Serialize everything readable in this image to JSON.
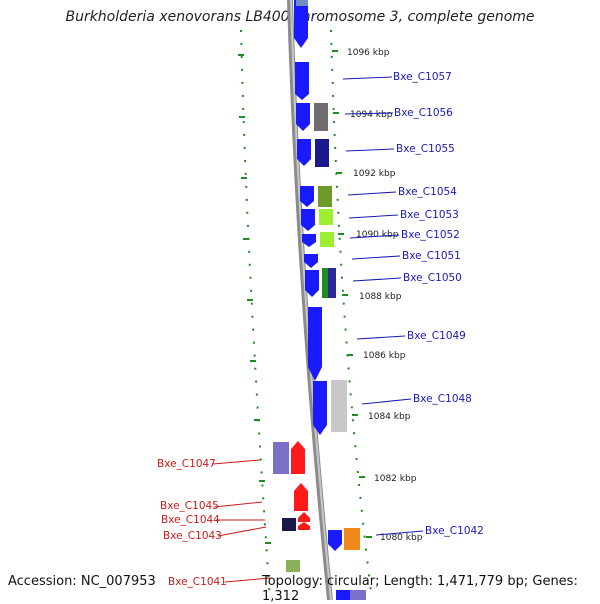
{
  "title": "Burkholderia xenovorans LB400 chromosome 3, complete genome",
  "footer": {
    "accession_label": "Accession:",
    "accession": "NC_007953",
    "topology_label": "Topology:",
    "topology": "circular",
    "length_label": "Length:",
    "length": "1,471,779 bp",
    "genes_label": "Genes:",
    "genes": "1,312"
  },
  "colors": {
    "forward_strand": "#1a1aff",
    "reverse_strand": "#ff1a1a",
    "backbone": "#909090",
    "ruler_ticks": "#1e8c1e",
    "forward_label": "#1a1ab4",
    "reverse_label": "#cc1a1a"
  },
  "scale_labels": [
    "1096 kbp",
    "1094 kbp",
    "1092 kbp",
    "1090 kbp",
    "1088 kbp",
    "1086 kbp",
    "1084 kbp",
    "1082 kbp",
    "1080 kbp"
  ],
  "genes": [
    {
      "label": "Bxe_C1057",
      "strand": "forward"
    },
    {
      "label": "Bxe_C1056",
      "strand": "forward"
    },
    {
      "label": "Bxe_C1055",
      "strand": "forward"
    },
    {
      "label": "Bxe_C1054",
      "strand": "forward"
    },
    {
      "label": "Bxe_C1053",
      "strand": "forward"
    },
    {
      "label": "Bxe_C1052",
      "strand": "forward"
    },
    {
      "label": "Bxe_C1051",
      "strand": "forward"
    },
    {
      "label": "Bxe_C1050",
      "strand": "forward"
    },
    {
      "label": "Bxe_C1049",
      "strand": "forward"
    },
    {
      "label": "Bxe_C1048",
      "strand": "forward"
    },
    {
      "label": "Bxe_C1047",
      "strand": "reverse"
    },
    {
      "label": "Bxe_C1045",
      "strand": "reverse"
    },
    {
      "label": "Bxe_C1044",
      "strand": "reverse"
    },
    {
      "label": "Bxe_C1043",
      "strand": "reverse"
    },
    {
      "label": "Bxe_C1042",
      "strand": "forward"
    },
    {
      "label": "Bxe_C1041",
      "strand": "reverse"
    }
  ]
}
